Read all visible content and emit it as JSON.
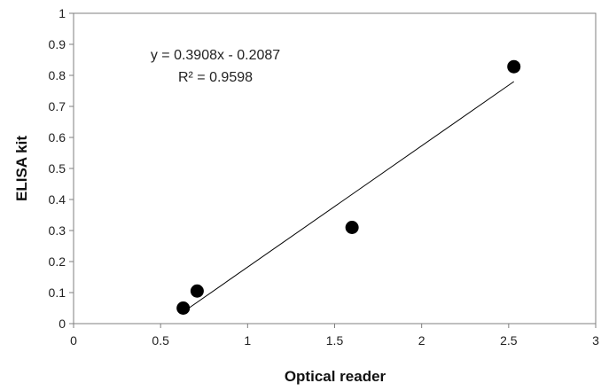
{
  "chart_data": {
    "type": "scatter",
    "xlabel": "Optical reader",
    "ylabel": "ELISA kit",
    "xlim": [
      0,
      3
    ],
    "ylim": [
      0,
      1
    ],
    "x_ticks": [
      "0",
      "0.5",
      "1",
      "1.5",
      "2",
      "2.5",
      "3"
    ],
    "y_ticks": [
      "0",
      "0.1",
      "0.2",
      "0.3",
      "0.4",
      "0.5",
      "0.6",
      "0.7",
      "0.8",
      "0.9",
      "1"
    ],
    "points": [
      {
        "x": 0.63,
        "y": 0.05
      },
      {
        "x": 0.71,
        "y": 0.105
      },
      {
        "x": 1.6,
        "y": 0.31
      },
      {
        "x": 2.53,
        "y": 0.828
      }
    ],
    "trendline": {
      "slope": 0.3908,
      "intercept": -0.2087,
      "x_start": 0.63,
      "x_end": 2.53
    },
    "equation": "y = 0.3908x - 0.2087",
    "r_squared": "R² = 0.9598",
    "grid": false,
    "legend": "none",
    "colors": {
      "point": "#000000",
      "line": "#000000",
      "axis": "#7f7f7f",
      "frame": "#7f7f7f"
    }
  }
}
